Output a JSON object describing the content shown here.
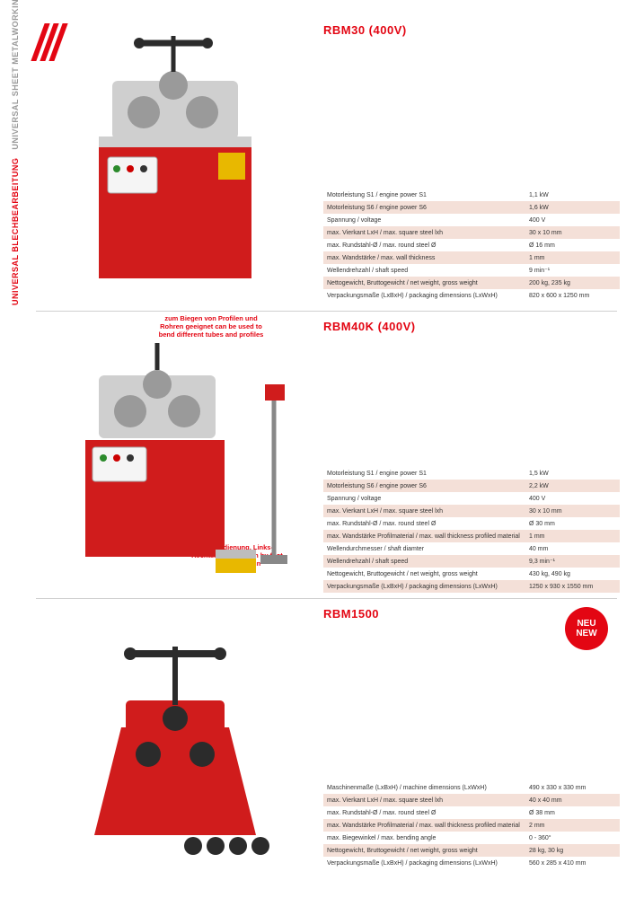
{
  "sidebar": {
    "de": "UNIVERSAL BLECHBEARBEITUNG",
    "en": "UNIVERSAL SHEET METALWORKING"
  },
  "badge": {
    "line1": "NEU",
    "line2": "NEW"
  },
  "products": [
    {
      "title": "RBM30 (400V)",
      "specs": [
        {
          "label": "Motorleistung S1 / engine power S1",
          "value": "1,1 kW"
        },
        {
          "label": "Motorleistung S6 / engine power S6",
          "value": "1,6 kW"
        },
        {
          "label": "Spannung / voltage",
          "value": "400 V"
        },
        {
          "label": "max. Vierkant LxH / max. square steel lxh",
          "value": "30 x 10 mm"
        },
        {
          "label": "max. Rundstahl-Ø / max. round steel Ø",
          "value": "Ø 16 mm"
        },
        {
          "label": "max. Wandstärke / max. wall thickness",
          "value": "1 mm"
        },
        {
          "label": "Wellendrehzahl / shaft speed",
          "value": "9 min⁻¹"
        },
        {
          "label": "Nettogewicht, Bruttogewicht / net weight, gross weight",
          "value": "200 kg, 235 kg"
        },
        {
          "label": "Verpackungsmaße (LxBxH) / packaging dimensions (LxWxH)",
          "value": "820 x 600 x 1250 mm"
        }
      ],
      "shade_rows": [
        1,
        3,
        5,
        7
      ]
    },
    {
      "title": "RBM40K (400V)",
      "annot_top": "zum Biegen von Profilen und Rohren geeignet\ncan be used to bend different tubes and profiles",
      "annot_foot": "Fußbedienung,\nLinks- Rechtslauf\noperation by foot,\nleft – right run",
      "specs": [
        {
          "label": "Motorleistung S1 / engine power S1",
          "value": "1,5 kW"
        },
        {
          "label": "Motorleistung S6 / engine power S6",
          "value": "2,2 kW"
        },
        {
          "label": "Spannung / voltage",
          "value": "400 V"
        },
        {
          "label": "max. Vierkant LxH / max. square steel lxh",
          "value": "30 x 10 mm"
        },
        {
          "label": "max. Rundstahl-Ø / max. round steel Ø",
          "value": "Ø 30 mm"
        },
        {
          "label": "max. Wandstärke Profilmaterial / max. wall thickness profiled material",
          "value": "1 mm"
        },
        {
          "label": "Wellendurchmesser / shaft diamter",
          "value": "40 mm"
        },
        {
          "label": "Wellendrehzahl / shaft speed",
          "value": "9,3 min⁻¹"
        },
        {
          "label": "Nettogewicht, Bruttogewicht / net weight, gross weight",
          "value": "430 kg, 490 kg"
        },
        {
          "label": "Verpackungsmaße (LxBxH) / packaging dimensions (LxWxH)",
          "value": "1250 x 930 x 1550 mm"
        }
      ],
      "shade_rows": [
        1,
        3,
        5,
        7,
        9
      ]
    },
    {
      "title": "RBM1500",
      "has_badge": true,
      "specs": [
        {
          "label": "Maschinenmaße (LxBxH) / machine dimensions (LxWxH)",
          "value": "490 x 330 x 330 mm"
        },
        {
          "label": "max. Vierkant LxH / max. square steel lxh",
          "value": "40 x 40 mm"
        },
        {
          "label": "max. Rundstahl-Ø / max. round steel Ø",
          "value": "Ø 38 mm"
        },
        {
          "label": "max. Wandstärke Profilmaterial / max. wall thickness profiled material",
          "value": "2 mm"
        },
        {
          "label": "max. Biegewinkel / max. bending angle",
          "value": "0 - 360°"
        },
        {
          "label": "Nettogewicht, Bruttogewicht / net weight, gross weight",
          "value": "28 kg, 30 kg"
        },
        {
          "label": "Verpackungsmaße (LxBxH) / packaging dimensions (LxWxH)",
          "value": "560 x 285 x 410 mm"
        }
      ],
      "shade_rows": [
        1,
        3,
        5
      ]
    }
  ],
  "colors": {
    "accent": "#e30613",
    "shade": "#f4e0d8",
    "text": "#333333",
    "grey": "#9a9a9a",
    "machine_red": "#d01c1c",
    "machine_grey": "#cfcfcf",
    "machine_dark": "#2b2b2b"
  }
}
